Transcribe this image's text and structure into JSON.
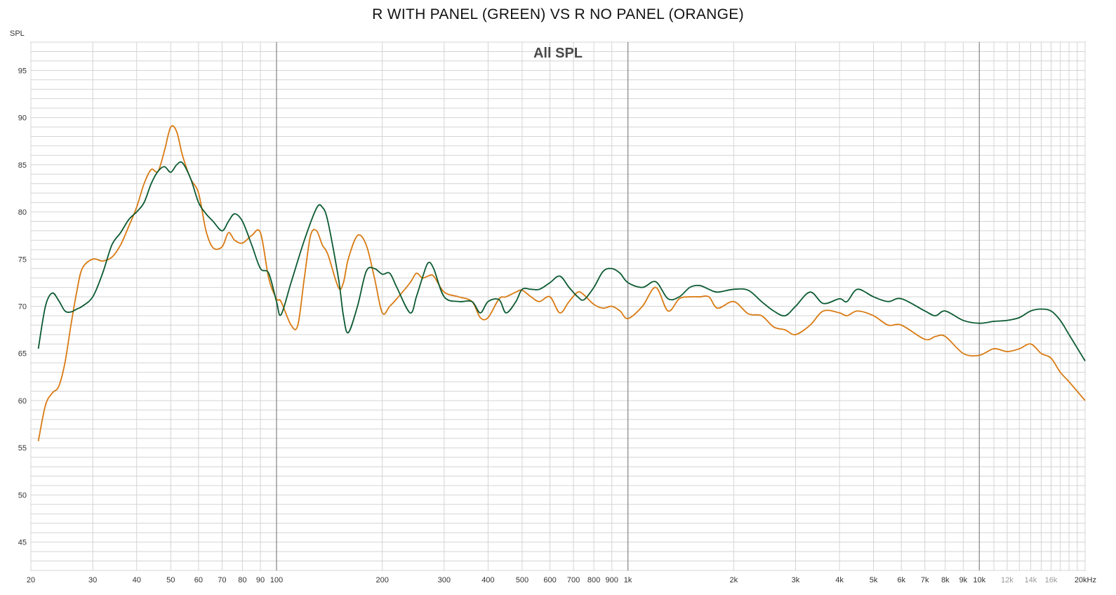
{
  "chart_data": {
    "type": "line",
    "title": "R WITH PANEL (GREEN) VS R NO PANEL (ORANGE)",
    "subtitle": "All SPL",
    "ylabel": "SPL",
    "xlabel": "",
    "xscale": "log",
    "xlim": [
      20,
      20000
    ],
    "ylim": [
      42,
      98
    ],
    "grid": true,
    "legend": "none",
    "yticks": [
      45,
      50,
      55,
      60,
      65,
      70,
      75,
      80,
      85,
      90,
      95
    ],
    "yticklabels": [
      "45",
      "50",
      "55",
      "60",
      "65",
      "70",
      "75",
      "80",
      "85",
      "90",
      "95"
    ],
    "xticks": [
      20,
      30,
      40,
      50,
      60,
      70,
      80,
      90,
      100,
      200,
      300,
      400,
      500,
      600,
      700,
      800,
      900,
      1000,
      2000,
      3000,
      4000,
      5000,
      6000,
      7000,
      8000,
      9000,
      10000,
      12000,
      14000,
      16000,
      20000
    ],
    "xticklabels": [
      "20",
      "30",
      "40",
      "50",
      "60",
      "70",
      "80",
      "90",
      "100",
      "200",
      "300",
      "400",
      "500",
      "600",
      "700",
      "800",
      "900",
      "1k",
      "2k",
      "3k",
      "4k",
      "5k",
      "6k",
      "7k",
      "8k",
      "9k",
      "10k",
      "12k",
      "14k",
      "16k",
      "20kHz"
    ],
    "colors": {
      "green": "#0b5a32",
      "orange": "#d97a12",
      "grid_major": "#8c8c8c",
      "grid_minor": "#d4d4d4"
    },
    "series": [
      {
        "color": "#0b5a32",
        "x": [
          21,
          22,
          23,
          24,
          25,
          26,
          27,
          28,
          30,
          32,
          34,
          36,
          38,
          40,
          42,
          44,
          46,
          48,
          50,
          52,
          54,
          57,
          60,
          63,
          66,
          70,
          73,
          76,
          80,
          85,
          90,
          95,
          100,
          103,
          110,
          120,
          130,
          135,
          140,
          150,
          155,
          160,
          170,
          180,
          190,
          200,
          210,
          220,
          240,
          250,
          260,
          270,
          280,
          300,
          330,
          360,
          380,
          400,
          430,
          450,
          480,
          500,
          530,
          560,
          600,
          640,
          680,
          720,
          750,
          800,
          850,
          900,
          950,
          1000,
          1100,
          1200,
          1300,
          1400,
          1500,
          1600,
          1700,
          1800,
          2000,
          2200,
          2400,
          2600,
          2800,
          3000,
          3300,
          3600,
          4000,
          4200,
          4500,
          5000,
          5500,
          6000,
          7000,
          7500,
          8000,
          9000,
          10000,
          11000,
          12000,
          13000,
          14000,
          15000,
          16000,
          17000,
          18000,
          20000
        ],
        "y": [
          65.5,
          70.0,
          71.4,
          70.6,
          69.5,
          69.4,
          69.7,
          70.0,
          71.0,
          73.5,
          76.5,
          77.8,
          79.2,
          80.0,
          81.0,
          83.0,
          84.3,
          84.8,
          84.2,
          85.0,
          85.2,
          83.5,
          81.0,
          79.8,
          79.0,
          78.0,
          79.0,
          79.8,
          79.0,
          76.5,
          74.0,
          73.5,
          70.5,
          69.1,
          72.5,
          77.0,
          80.4,
          80.5,
          79.0,
          73.0,
          69.0,
          67.2,
          70.0,
          73.7,
          74.0,
          73.4,
          73.5,
          72.0,
          69.3,
          71.0,
          73.0,
          74.6,
          74.0,
          71.0,
          70.5,
          70.5,
          69.3,
          70.5,
          70.7,
          69.3,
          70.5,
          71.8,
          71.8,
          71.8,
          72.5,
          73.2,
          72.0,
          71.0,
          70.7,
          72.0,
          73.7,
          74.0,
          73.5,
          72.5,
          72.0,
          72.6,
          70.8,
          71.0,
          72.0,
          72.2,
          71.8,
          71.5,
          71.8,
          71.7,
          70.5,
          69.5,
          69.0,
          70.0,
          71.5,
          70.3,
          70.8,
          70.5,
          71.8,
          71.0,
          70.5,
          70.8,
          69.5,
          69.0,
          69.5,
          68.5,
          68.2,
          68.4,
          68.5,
          68.8,
          69.5,
          69.7,
          69.5,
          68.5,
          67.0,
          64.2
        ]
      },
      {
        "color": "#d97a12",
        "x": [
          21,
          22,
          23,
          24,
          25,
          26,
          27,
          28,
          30,
          32,
          34,
          36,
          38,
          40,
          42,
          44,
          46,
          48,
          50,
          52,
          54,
          57,
          60,
          63,
          66,
          70,
          73,
          76,
          80,
          85,
          90,
          95,
          100,
          103,
          110,
          115,
          120,
          125,
          130,
          135,
          140,
          150,
          155,
          160,
          170,
          180,
          190,
          200,
          210,
          220,
          240,
          250,
          260,
          270,
          280,
          300,
          330,
          360,
          380,
          400,
          430,
          450,
          480,
          500,
          530,
          560,
          600,
          640,
          680,
          720,
          750,
          800,
          850,
          900,
          950,
          1000,
          1100,
          1200,
          1300,
          1400,
          1500,
          1600,
          1700,
          1800,
          2000,
          2200,
          2400,
          2600,
          2800,
          3000,
          3300,
          3600,
          4000,
          4200,
          4500,
          5000,
          5500,
          6000,
          7000,
          7500,
          8000,
          9000,
          10000,
          11000,
          12000,
          13000,
          14000,
          15000,
          16000,
          17000,
          18000,
          20000
        ],
        "y": [
          55.7,
          59.5,
          60.8,
          61.5,
          64.0,
          68.0,
          71.5,
          74.0,
          75.0,
          74.8,
          75.2,
          76.5,
          78.5,
          80.5,
          83.0,
          84.5,
          84.3,
          86.5,
          89.0,
          88.5,
          86.0,
          83.5,
          82.0,
          78.0,
          76.2,
          76.3,
          77.8,
          77.0,
          76.7,
          77.5,
          77.8,
          73.0,
          70.8,
          70.5,
          68.0,
          68.0,
          73.0,
          77.5,
          78.0,
          76.5,
          75.5,
          72.0,
          72.5,
          75.0,
          77.5,
          76.5,
          73.0,
          69.3,
          70.0,
          70.8,
          72.5,
          73.5,
          73.0,
          73.2,
          73.2,
          71.5,
          71.0,
          70.5,
          68.8,
          68.8,
          70.8,
          71.0,
          71.5,
          71.7,
          71.0,
          70.5,
          71.0,
          69.3,
          70.5,
          71.5,
          71.2,
          70.2,
          69.8,
          70.0,
          69.5,
          68.7,
          70.0,
          72.0,
          69.5,
          70.8,
          71.0,
          71.0,
          71.0,
          69.8,
          70.5,
          69.2,
          69.0,
          67.8,
          67.5,
          67.0,
          68.0,
          69.5,
          69.3,
          69.0,
          69.5,
          69.0,
          68.0,
          68.0,
          66.5,
          66.8,
          66.8,
          65.0,
          64.8,
          65.5,
          65.2,
          65.5,
          66.0,
          65.0,
          64.5,
          63.0,
          62.0,
          60.0
        ]
      }
    ]
  }
}
